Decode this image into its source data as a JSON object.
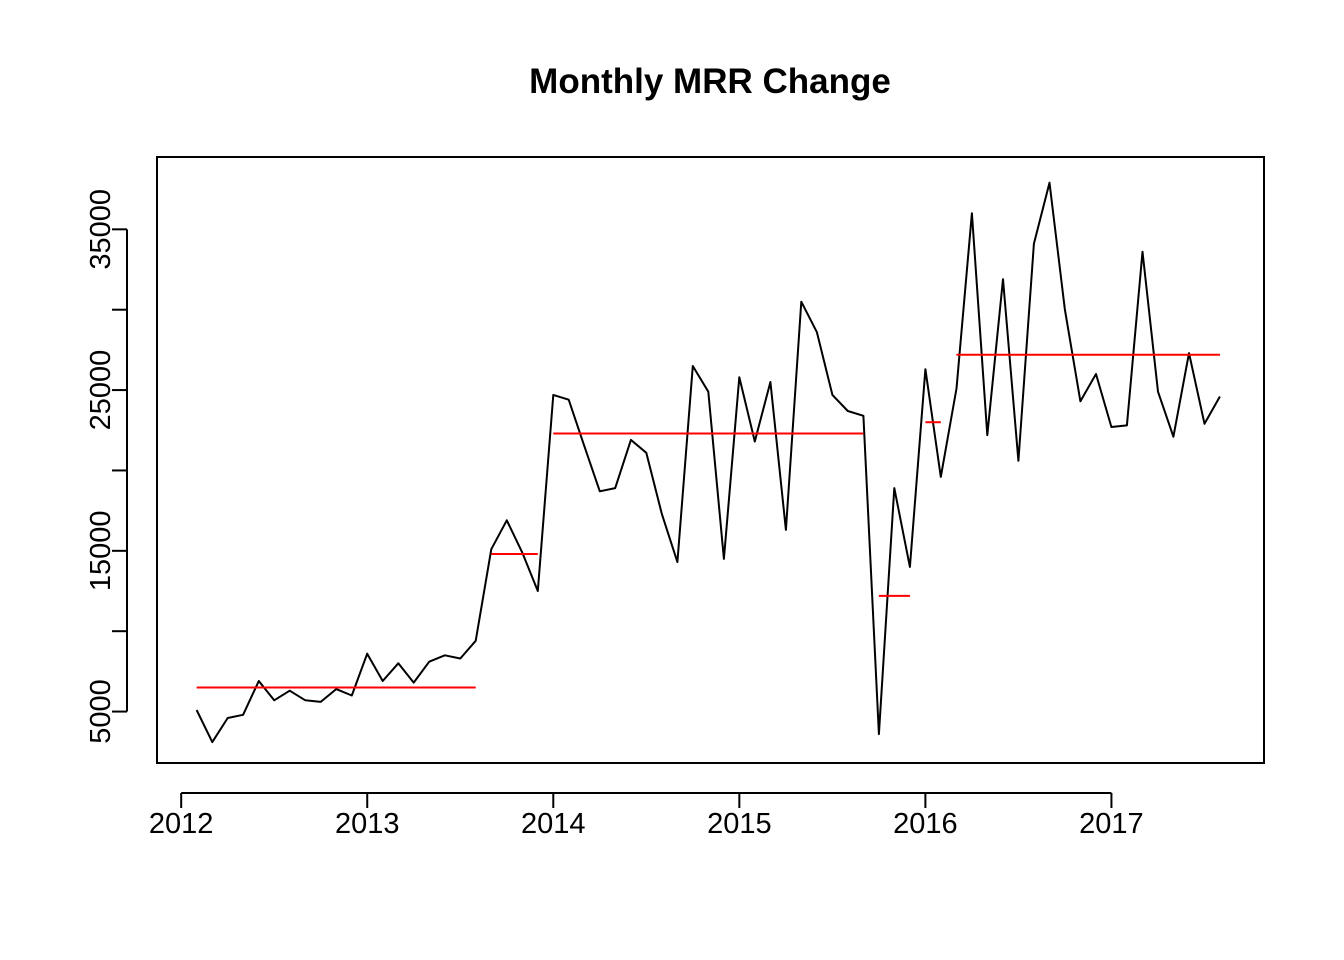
{
  "chart_data": {
    "type": "line",
    "title": "Monthly MRR Change",
    "xlabel": "",
    "ylabel": "",
    "xlim": [
      2011.87,
      2017.82
    ],
    "ylim": [
      1800,
      39500
    ],
    "x_ticks": [
      2012,
      2013,
      2014,
      2015,
      2016,
      2017
    ],
    "x_tick_labels": [
      "2012",
      "2013",
      "2014",
      "2015",
      "2016",
      "2017"
    ],
    "y_ticks": [
      5000,
      10000,
      15000,
      20000,
      25000,
      30000,
      35000
    ],
    "y_tick_labels": [
      "5000",
      "",
      "15000",
      "",
      "25000",
      "",
      "35000"
    ],
    "grid": false,
    "series": [
      {
        "color": "#000000",
        "start": "2012-02",
        "x": [
          2012.083,
          2012.167,
          2012.25,
          2012.333,
          2012.417,
          2012.5,
          2012.583,
          2012.667,
          2012.75,
          2012.833,
          2012.917,
          2013.0,
          2013.083,
          2013.167,
          2013.25,
          2013.333,
          2013.417,
          2013.5,
          2013.583,
          2013.667,
          2013.75,
          2013.833,
          2013.917,
          2014.0,
          2014.083,
          2014.167,
          2014.25,
          2014.333,
          2014.417,
          2014.5,
          2014.583,
          2014.667,
          2014.75,
          2014.833,
          2014.917,
          2015.0,
          2015.083,
          2015.167,
          2015.25,
          2015.333,
          2015.417,
          2015.5,
          2015.583,
          2015.667,
          2015.75,
          2015.833,
          2015.917,
          2016.0,
          2016.083,
          2016.167,
          2016.25,
          2016.333,
          2016.417,
          2016.5,
          2016.583,
          2016.667,
          2016.75,
          2016.833,
          2016.917,
          2017.0,
          2017.083,
          2017.167,
          2017.25,
          2017.333,
          2017.417,
          2017.5,
          2017.583
        ],
        "values": [
          5100,
          3100,
          4600,
          4800,
          6900,
          5700,
          6300,
          5700,
          5600,
          6400,
          6000,
          8600,
          6900,
          8000,
          6800,
          8100,
          8500,
          8300,
          9400,
          15100,
          16900,
          14900,
          12500,
          24700,
          24400,
          21500,
          18700,
          18900,
          21900,
          21100,
          17300,
          14300,
          26500,
          24900,
          14500,
          25800,
          21800,
          25500,
          16300,
          30500,
          28600,
          24700,
          23700,
          23400,
          3600,
          18900,
          14000,
          26300,
          19600,
          25100,
          36000,
          22200,
          31900,
          20600,
          34100,
          37900,
          30000,
          24300,
          26000,
          22700,
          22800,
          33600,
          24900,
          22100,
          27300,
          22900,
          24600
        ]
      },
      {
        "color": "#ff0000",
        "type": "segments",
        "segments": [
          {
            "x": [
              2012.083,
              2013.583
            ],
            "y": 6500
          },
          {
            "x": [
              2013.667,
              2013.917
            ],
            "y": 14800
          },
          {
            "x": [
              2014.0,
              2015.667
            ],
            "y": 22300
          },
          {
            "x": [
              2015.75,
              2015.917
            ],
            "y": 12200
          },
          {
            "x": [
              2016.0,
              2016.083
            ],
            "y": 23000
          },
          {
            "x": [
              2016.167,
              2017.583
            ],
            "y": 27200
          }
        ]
      }
    ]
  }
}
